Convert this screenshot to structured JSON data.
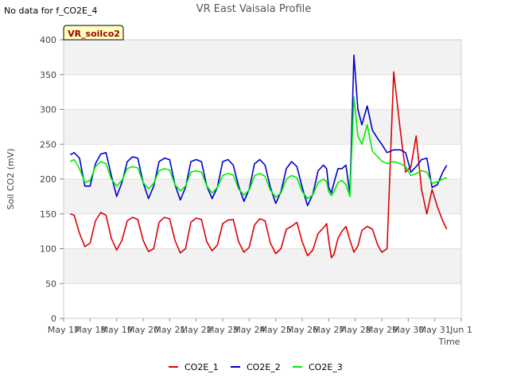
{
  "no_data_note": "No data for f_CO2E_4",
  "badge": "VR_soilco2",
  "chart_data": {
    "type": "line",
    "title": "VR East Vaisala Profile",
    "xlabel": "Time",
    "ylabel": "Soil CO2 (mV)",
    "xlim": [
      0,
      15
    ],
    "ylim": [
      0,
      400
    ],
    "yticks": [
      0,
      50,
      100,
      150,
      200,
      250,
      300,
      350,
      400
    ],
    "xticks": [
      {
        "pos": 0,
        "label": "May 17"
      },
      {
        "pos": 1,
        "label": "May 18"
      },
      {
        "pos": 2,
        "label": "May 19"
      },
      {
        "pos": 3,
        "label": "May 20"
      },
      {
        "pos": 4,
        "label": "May 21"
      },
      {
        "pos": 5,
        "label": "May 22"
      },
      {
        "pos": 6,
        "label": "May 23"
      },
      {
        "pos": 7,
        "label": "May 24"
      },
      {
        "pos": 8,
        "label": "May 25"
      },
      {
        "pos": 9,
        "label": "May 26"
      },
      {
        "pos": 10,
        "label": "May 27"
      },
      {
        "pos": 11,
        "label": "May 28"
      },
      {
        "pos": 12,
        "label": "May 29"
      },
      {
        "pos": 13,
        "label": "May 30"
      },
      {
        "pos": 14,
        "label": "May 31"
      },
      {
        "pos": 15,
        "label": "Jun 1"
      }
    ],
    "series": [
      {
        "name": "CO2E_1",
        "color": "#dd0000",
        "x": [
          0.25,
          0.4,
          0.6,
          0.8,
          1.0,
          1.2,
          1.4,
          1.6,
          1.8,
          2.0,
          2.2,
          2.4,
          2.6,
          2.8,
          3.0,
          3.2,
          3.4,
          3.6,
          3.8,
          4.0,
          4.2,
          4.4,
          4.6,
          4.8,
          5.0,
          5.2,
          5.4,
          5.6,
          5.8,
          6.0,
          6.2,
          6.4,
          6.6,
          6.8,
          7.0,
          7.2,
          7.4,
          7.6,
          7.8,
          8.0,
          8.2,
          8.4,
          8.6,
          8.8,
          9.0,
          9.2,
          9.4,
          9.6,
          9.8,
          9.92,
          10.0,
          10.1,
          10.2,
          10.35,
          10.5,
          10.65,
          10.8,
          10.95,
          11.1,
          11.25,
          11.45,
          11.65,
          11.85,
          12.0,
          12.2,
          12.45,
          12.7,
          12.9,
          13.1,
          13.3,
          13.5,
          13.7,
          13.9,
          14.1,
          14.3,
          14.45
        ],
        "y": [
          150,
          148,
          122,
          103,
          108,
          140,
          152,
          148,
          115,
          98,
          112,
          140,
          145,
          142,
          112,
          96,
          100,
          138,
          145,
          143,
          112,
          94,
          100,
          138,
          144,
          142,
          110,
          97,
          105,
          136,
          141,
          142,
          110,
          95,
          102,
          134,
          143,
          140,
          108,
          93,
          100,
          128,
          132,
          138,
          110,
          90,
          98,
          122,
          130,
          136,
          112,
          87,
          92,
          115,
          125,
          132,
          112,
          95,
          104,
          126,
          132,
          128,
          105,
          95,
          100,
          354,
          270,
          210,
          218,
          262,
          185,
          150,
          185,
          160,
          140,
          128
        ],
        "x2": [],
        "y2": []
      }
    ]
  }
}
